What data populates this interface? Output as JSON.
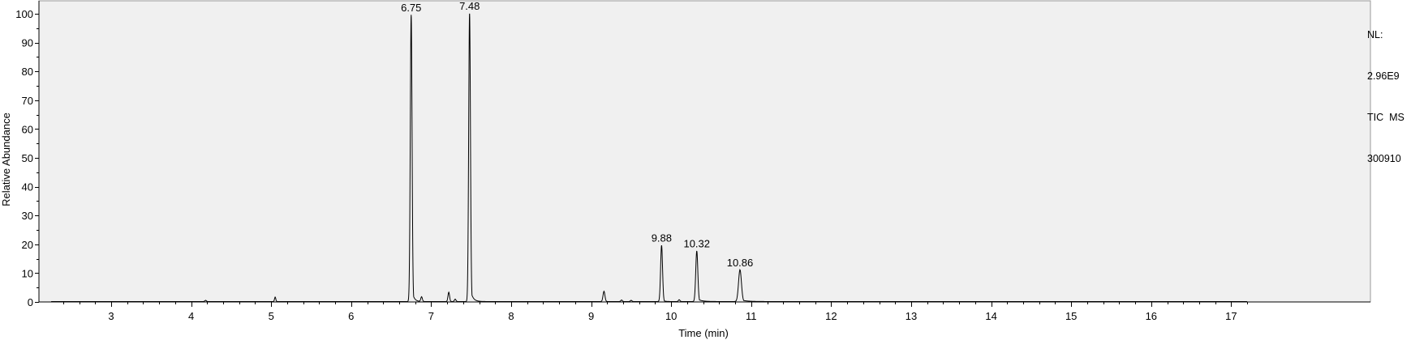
{
  "chart_data": {
    "type": "line",
    "xlabel": "Time (min)",
    "ylabel": "Relative Abundance",
    "xlim": [
      2.25,
      17.2
    ],
    "ylim": [
      0,
      100
    ],
    "x_ticks": [
      3,
      4,
      5,
      6,
      7,
      8,
      9,
      10,
      11,
      12,
      13,
      14,
      15,
      16,
      17
    ],
    "x_minor_step": 0.2,
    "y_ticks": [
      0,
      10,
      20,
      30,
      40,
      50,
      60,
      70,
      80,
      90,
      100
    ],
    "y_minor_step": 5,
    "peaks": [
      {
        "rt": 4.18,
        "height": 0.4,
        "width": 0.01,
        "label": ""
      },
      {
        "rt": 5.05,
        "height": 1.5,
        "width": 0.008,
        "label": ""
      },
      {
        "rt": 6.75,
        "height": 99.5,
        "width": 0.011,
        "tail": 0.025,
        "label": "6.75"
      },
      {
        "rt": 6.88,
        "height": 1.6,
        "width": 0.01,
        "label": ""
      },
      {
        "rt": 7.22,
        "height": 3.2,
        "width": 0.01,
        "label": ""
      },
      {
        "rt": 7.3,
        "height": 0.8,
        "width": 0.01,
        "label": ""
      },
      {
        "rt": 7.48,
        "height": 100,
        "width": 0.011,
        "tail": 0.03,
        "label": "7.48"
      },
      {
        "rt": 9.16,
        "height": 3.5,
        "width": 0.012,
        "label": ""
      },
      {
        "rt": 9.38,
        "height": 0.5,
        "width": 0.01,
        "label": ""
      },
      {
        "rt": 9.5,
        "height": 0.4,
        "width": 0.01,
        "label": ""
      },
      {
        "rt": 9.88,
        "height": 19.5,
        "width": 0.012,
        "tail": 0.02,
        "label": "9.88"
      },
      {
        "rt": 10.1,
        "height": 0.6,
        "width": 0.01,
        "label": ""
      },
      {
        "rt": 10.32,
        "height": 17.5,
        "width": 0.013,
        "tail": 0.05,
        "label": "10.32"
      },
      {
        "rt": 10.86,
        "height": 11,
        "width": 0.018,
        "tail": 0.07,
        "label": "10.86"
      }
    ],
    "info": {
      "nl_label": "NL:",
      "nl_value": "2.96E9",
      "filter": "TIC  MS",
      "sample": "300910"
    }
  }
}
